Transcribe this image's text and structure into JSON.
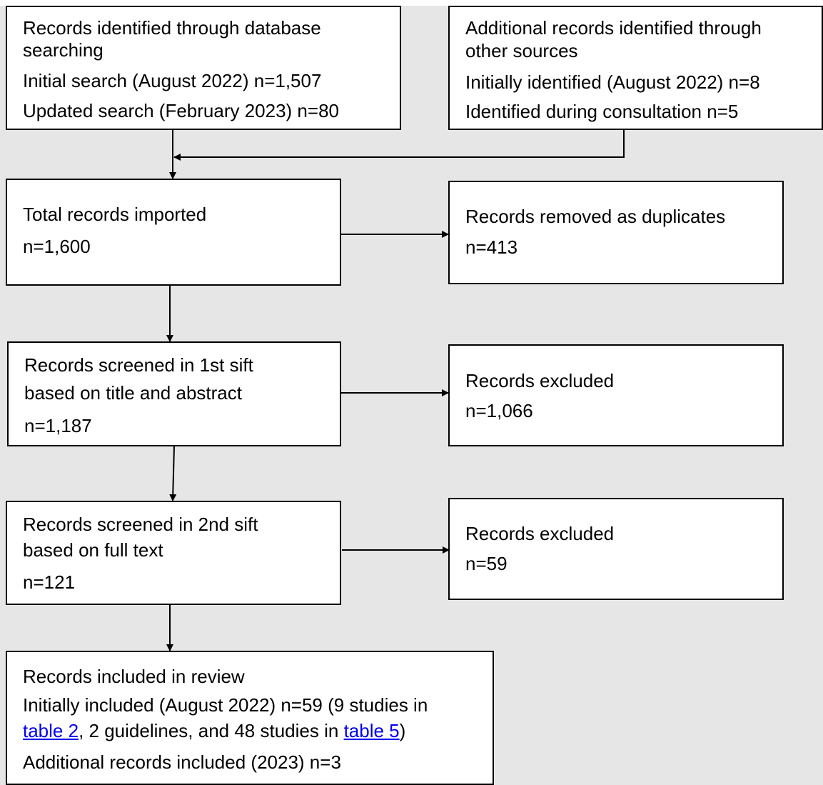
{
  "boxes": {
    "database_search": {
      "line1": "Records identified through database",
      "line2": "searching",
      "line3": "Initial search (August 2022) n=1,507",
      "line4": "Updated search (February 2023) n=80"
    },
    "other_sources": {
      "line1": "Additional records identified through",
      "line2": "other sources",
      "line3": "Initially identified (August 2022) n=8",
      "line4": "Identified during consultation n=5"
    },
    "total_imported": {
      "line1": "Total records imported",
      "line2": "n=1,600"
    },
    "duplicates": {
      "line1": "Records removed as duplicates",
      "line2": "n=413"
    },
    "first_sift": {
      "line1": "Records screened in 1st sift",
      "line2": "based on title and abstract",
      "line3": "n=1,187"
    },
    "first_excluded": {
      "line1": "Records excluded",
      "line2": "n=1,066"
    },
    "second_sift": {
      "line1": "Records screened in 2nd sift",
      "line2": "based on full text",
      "line3": "n=121"
    },
    "second_excluded": {
      "line1": "Records excluded",
      "line2": "n=59"
    },
    "included": {
      "line1": "Records included in review",
      "line2": "Initially included (August 2022) n=59 (9 studies in",
      "line3_link1": "table 2",
      "line3_mid": ", 2 guidelines, and 48 studies in ",
      "line3_link2": "table 5",
      "line3_end": ")",
      "line4": "Additional records included (2023) n=3"
    }
  },
  "colors": {
    "background_panel": "#e6e6e6",
    "box_fill": "#ffffff",
    "link": "#0000ee"
  }
}
